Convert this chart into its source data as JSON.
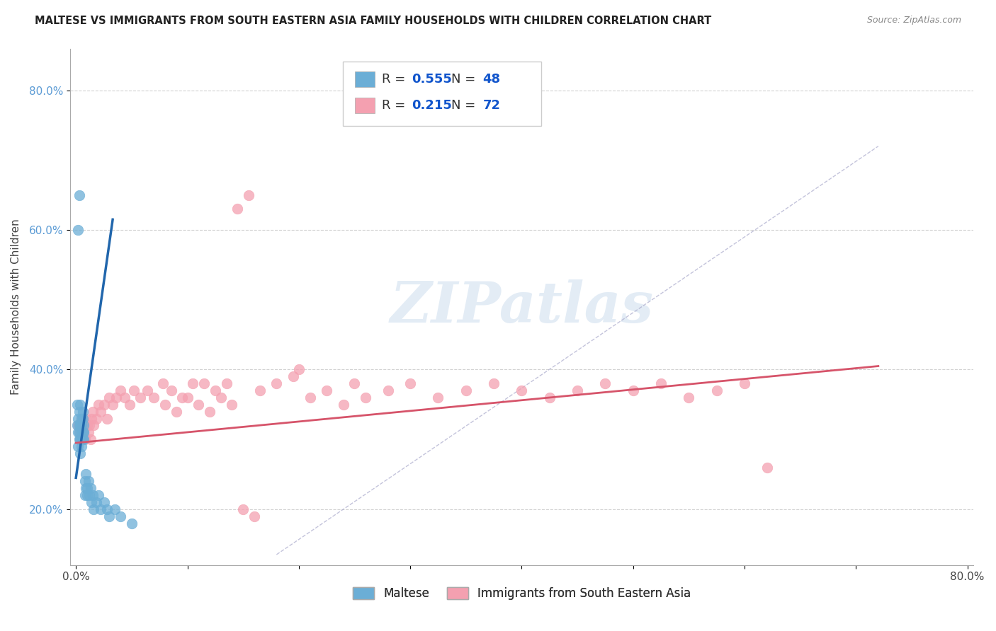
{
  "title": "MALTESE VS IMMIGRANTS FROM SOUTH EASTERN ASIA FAMILY HOUSEHOLDS WITH CHILDREN CORRELATION CHART",
  "source": "Source: ZipAtlas.com",
  "ylabel": "Family Households with Children",
  "xlim": [
    -0.005,
    0.805
  ],
  "ylim": [
    0.12,
    0.86
  ],
  "xtick_positions": [
    0.0,
    0.1,
    0.2,
    0.3,
    0.4,
    0.5,
    0.6,
    0.7,
    0.8
  ],
  "xtick_labels": [
    "0.0%",
    "",
    "",
    "",
    "",
    "",
    "",
    "",
    "80.0%"
  ],
  "ytick_positions": [
    0.2,
    0.4,
    0.6,
    0.8
  ],
  "ytick_labels": [
    "20.0%",
    "40.0%",
    "60.0%",
    "80.0%"
  ],
  "blue_color": "#6BAED6",
  "pink_color": "#F4A0B0",
  "blue_line_color": "#2166AC",
  "pink_line_color": "#D6546A",
  "diag_color": "#AAAACC",
  "blue_R": "0.555",
  "blue_N": "48",
  "pink_R": "0.215",
  "pink_N": "72",
  "legend_label_blue": "Maltese",
  "legend_label_pink": "Immigrants from South Eastern Asia",
  "watermark_text": "ZIPatlas",
  "background_color": "#FFFFFF",
  "grid_color": "#CCCCCC",
  "blue_x": [
    0.001,
    0.001,
    0.002,
    0.002,
    0.002,
    0.003,
    0.003,
    0.003,
    0.003,
    0.004,
    0.004,
    0.004,
    0.004,
    0.005,
    0.005,
    0.005,
    0.005,
    0.005,
    0.006,
    0.006,
    0.006,
    0.006,
    0.007,
    0.007,
    0.007,
    0.008,
    0.008,
    0.009,
    0.009,
    0.01,
    0.01,
    0.011,
    0.012,
    0.013,
    0.014,
    0.015,
    0.016,
    0.018,
    0.02,
    0.022,
    0.025,
    0.028,
    0.03,
    0.035,
    0.04,
    0.05,
    0.002,
    0.003
  ],
  "blue_y": [
    0.32,
    0.35,
    0.31,
    0.33,
    0.29,
    0.32,
    0.3,
    0.34,
    0.31,
    0.3,
    0.32,
    0.35,
    0.28,
    0.31,
    0.33,
    0.3,
    0.29,
    0.32,
    0.31,
    0.3,
    0.33,
    0.34,
    0.3,
    0.32,
    0.31,
    0.22,
    0.24,
    0.23,
    0.25,
    0.22,
    0.23,
    0.24,
    0.22,
    0.23,
    0.21,
    0.22,
    0.2,
    0.21,
    0.22,
    0.2,
    0.21,
    0.2,
    0.19,
    0.2,
    0.19,
    0.18,
    0.6,
    0.65
  ],
  "pink_x": [
    0.002,
    0.003,
    0.004,
    0.005,
    0.006,
    0.007,
    0.008,
    0.009,
    0.01,
    0.011,
    0.012,
    0.013,
    0.014,
    0.015,
    0.016,
    0.018,
    0.02,
    0.022,
    0.025,
    0.028,
    0.03,
    0.033,
    0.036,
    0.04,
    0.044,
    0.048,
    0.052,
    0.058,
    0.064,
    0.07,
    0.078,
    0.086,
    0.095,
    0.105,
    0.115,
    0.125,
    0.135,
    0.145,
    0.155,
    0.165,
    0.18,
    0.195,
    0.21,
    0.225,
    0.24,
    0.26,
    0.28,
    0.3,
    0.325,
    0.35,
    0.375,
    0.4,
    0.425,
    0.45,
    0.475,
    0.5,
    0.525,
    0.55,
    0.575,
    0.6,
    0.08,
    0.09,
    0.1,
    0.11,
    0.12,
    0.13,
    0.14,
    0.15,
    0.16,
    0.2,
    0.25,
    0.62
  ],
  "pink_y": [
    0.32,
    0.31,
    0.3,
    0.33,
    0.32,
    0.31,
    0.3,
    0.33,
    0.32,
    0.31,
    0.32,
    0.3,
    0.33,
    0.34,
    0.32,
    0.33,
    0.35,
    0.34,
    0.35,
    0.33,
    0.36,
    0.35,
    0.36,
    0.37,
    0.36,
    0.35,
    0.37,
    0.36,
    0.37,
    0.36,
    0.38,
    0.37,
    0.36,
    0.38,
    0.38,
    0.37,
    0.38,
    0.63,
    0.65,
    0.37,
    0.38,
    0.39,
    0.36,
    0.37,
    0.35,
    0.36,
    0.37,
    0.38,
    0.36,
    0.37,
    0.38,
    0.37,
    0.36,
    0.37,
    0.38,
    0.37,
    0.38,
    0.36,
    0.37,
    0.38,
    0.35,
    0.34,
    0.36,
    0.35,
    0.34,
    0.36,
    0.35,
    0.2,
    0.19,
    0.4,
    0.38,
    0.26
  ],
  "blue_line_x0": 0.0,
  "blue_line_x1": 0.033,
  "blue_line_y0": 0.245,
  "blue_line_y1": 0.615,
  "pink_line_x0": 0.0,
  "pink_line_x1": 0.72,
  "pink_line_y0": 0.295,
  "pink_line_y1": 0.405,
  "diag_line_x0": 0.18,
  "diag_line_x1": 0.72,
  "diag_line_y0": 0.135,
  "diag_line_y1": 0.72
}
